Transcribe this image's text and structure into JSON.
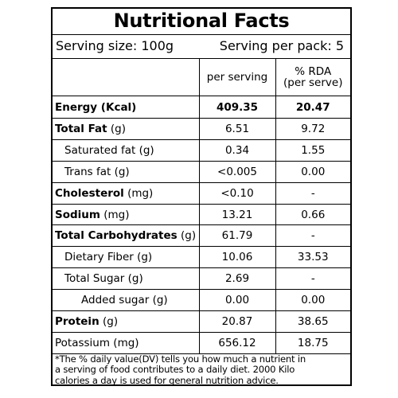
{
  "title": "Nutritional Facts",
  "serving": {
    "size": "Serving size: 100g",
    "per_pack": "Serving per pack: 5"
  },
  "columns": {
    "per_serving": "per serving",
    "rda_line1": "% RDA",
    "rda_line2": "(per serve)"
  },
  "rows": [
    {
      "bold": "Energy (Kcal)",
      "rest": "",
      "per_serving": "409.35",
      "rda": "20.47"
    },
    {
      "bold": "Total Fat",
      "rest": " (g)",
      "per_serving": "6.51",
      "rda": "9.72"
    },
    {
      "bold": "",
      "rest": "Saturated fat (g)",
      "per_serving": "0.34",
      "rda": "1.55"
    },
    {
      "bold": "",
      "rest": "Trans fat (g)",
      "per_serving": "<0.005",
      "rda": "0.00"
    },
    {
      "bold": "Cholesterol",
      "rest": " (mg)",
      "per_serving": "<0.10",
      "rda": "-"
    },
    {
      "bold": "Sodium",
      "rest": " (mg)",
      "per_serving": "13.21",
      "rda": "0.66"
    },
    {
      "bold": "Total Carbohydrates",
      "rest": " (g)",
      "per_serving": "61.79",
      "rda": "-"
    },
    {
      "bold": "",
      "rest": "Dietary Fiber (g)",
      "per_serving": "10.06",
      "rda": "33.53"
    },
    {
      "bold": "",
      "rest": "Total Sugar (g)",
      "per_serving": "2.69",
      "rda": "-"
    },
    {
      "bold": "",
      "rest": "Added sugar (g)",
      "per_serving": "0.00",
      "rda": "0.00"
    },
    {
      "bold": "Protein",
      "rest": " (g)",
      "per_serving": "20.87",
      "rda": "38.65"
    },
    {
      "bold": "",
      "rest": "Potassium (mg)",
      "per_serving": "656.12",
      "rda": "18.75"
    }
  ],
  "footnote": {
    "line1": "*The % daily value(DV) tells you how much a nutrient in",
    "line2": "a serving of food contributes to a daily diet. 2000 Kilo",
    "line3": "calories a day is used for general nutrition advice."
  }
}
